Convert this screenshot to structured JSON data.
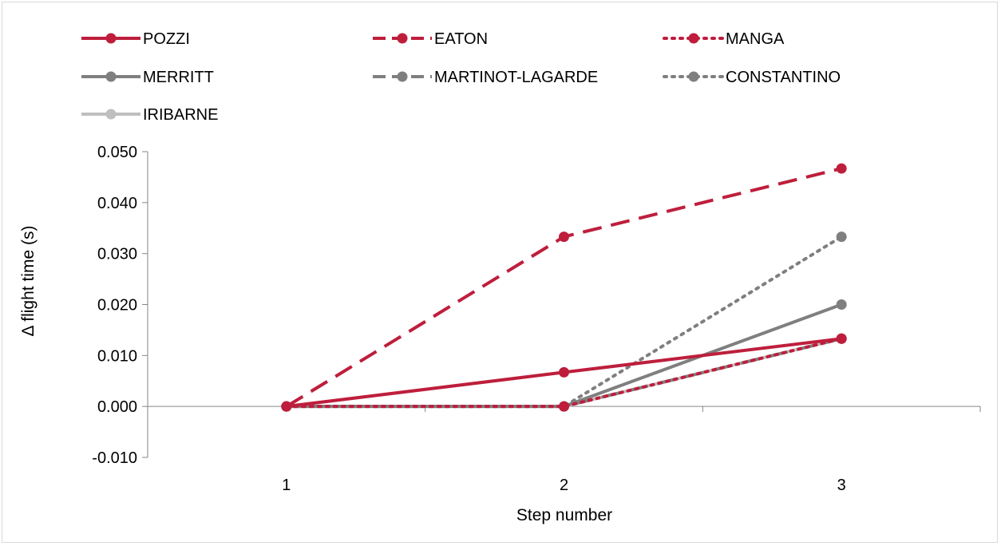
{
  "chart_data": {
    "type": "line",
    "title": "",
    "xlabel": "Step number",
    "ylabel": "Δ flight time (s)",
    "categories": [
      "1",
      "2",
      "3"
    ],
    "ylim": [
      -0.01,
      0.05
    ],
    "yticks": [
      "-0.010",
      "0.000",
      "0.010",
      "0.020",
      "0.030",
      "0.040",
      "0.050"
    ],
    "ytick_values": [
      -0.01,
      0.0,
      0.01,
      0.02,
      0.03,
      0.04,
      0.05
    ],
    "grid": false,
    "legend_position": "top",
    "series": [
      {
        "name": "POZZI",
        "values": [
          0.0,
          0.0067,
          0.0133
        ],
        "color": "#be1e3c",
        "dash": "solid"
      },
      {
        "name": "EATON",
        "values": [
          0.0,
          0.0333,
          0.0467
        ],
        "color": "#be1e3c",
        "dash": "dashed"
      },
      {
        "name": "MANGA",
        "values": [
          0.0,
          0.0,
          0.0133
        ],
        "color": "#be1e3c",
        "dash": "dotted"
      },
      {
        "name": "MERRITT",
        "values": [
          0.0,
          0.0,
          0.02
        ],
        "color": "#7f7f7f",
        "dash": "solid"
      },
      {
        "name": "MARTINOT-LAGARDE",
        "values": [
          0.0,
          0.0,
          0.0133
        ],
        "color": "#7f7f7f",
        "dash": "dashed"
      },
      {
        "name": "CONSTANTINO",
        "values": [
          0.0,
          0.0,
          0.0333
        ],
        "color": "#7f7f7f",
        "dash": "dotted"
      },
      {
        "name": "IRIBARNE",
        "values": [
          0.0,
          0.0,
          0.0133
        ],
        "color": "#bfbfbf",
        "dash": "solid"
      }
    ]
  }
}
